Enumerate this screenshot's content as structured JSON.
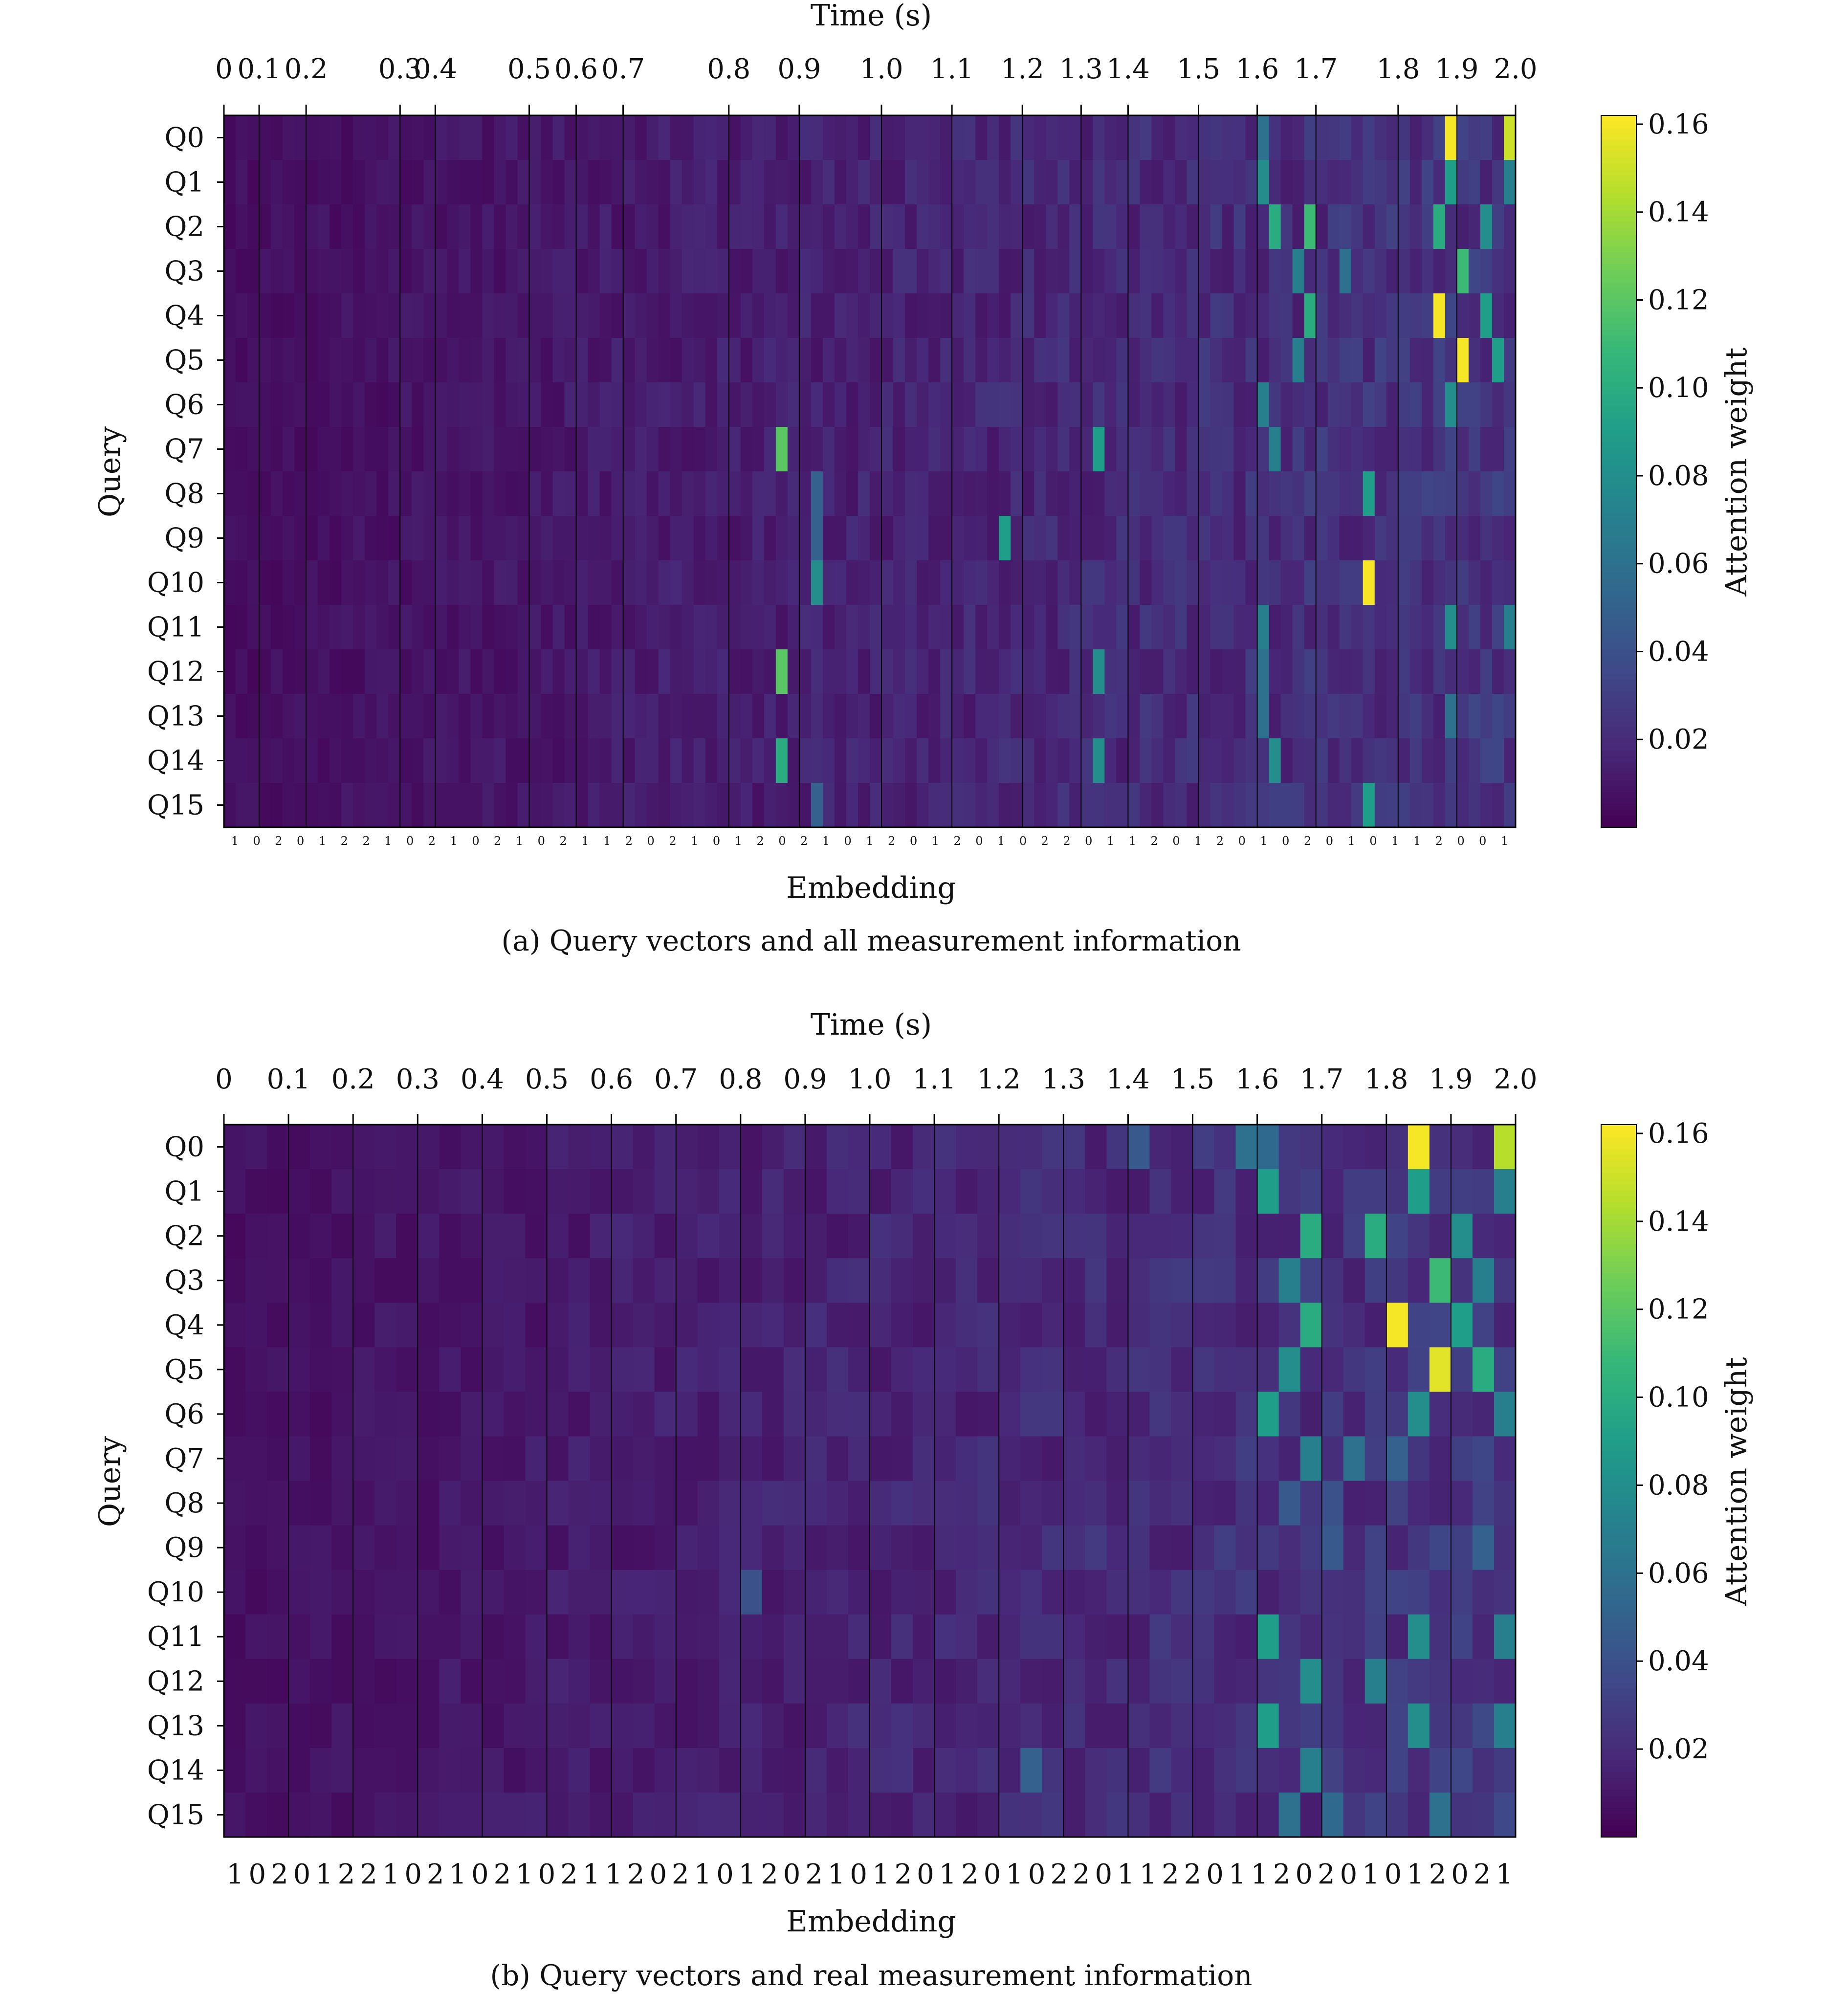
{
  "figure": {
    "charts": [
      "a",
      "b"
    ]
  },
  "panels": [
    {
      "id": "a",
      "caption": "(a) Query vectors and all measurement information",
      "xlabel_top": "Time (s)",
      "xlabel_bottom": "Embedding",
      "ylabel": "Query",
      "colorbar_label": "Attention weight"
    },
    {
      "id": "b",
      "caption": "(b) Query vectors and real measurement information",
      "xlabel_top": "Time (s)",
      "xlabel_bottom": "Embedding",
      "ylabel": "Query",
      "colorbar_label": "Attention weight"
    }
  ],
  "chart_data": [
    {
      "type": "heatmap",
      "panel": "a",
      "title": "",
      "colormap": "viridis",
      "rows": [
        "Q0",
        "Q1",
        "Q2",
        "Q3",
        "Q4",
        "Q5",
        "Q6",
        "Q7",
        "Q8",
        "Q9",
        "Q10",
        "Q11",
        "Q12",
        "Q13",
        "Q14",
        "Q15"
      ],
      "n_embeddings": 110,
      "time_ticks": [
        "0",
        "0.1",
        "0.2",
        "0.3",
        "0.4",
        "0.5",
        "0.6",
        "0.7",
        "0.8",
        "0.9",
        "1.0",
        "1.1",
        "1.2",
        "1.3",
        "1.4",
        "1.5",
        "1.6",
        "1.7",
        "1.8",
        "1.9",
        "2.0"
      ],
      "time_tick_embedding_index": [
        0,
        3,
        7,
        15,
        18,
        26,
        30,
        34,
        43,
        49,
        56,
        62,
        68,
        73,
        77,
        83,
        88,
        93,
        100,
        105,
        110
      ],
      "embedding_tick_labels": [
        "1",
        "0",
        "2",
        "0",
        "1",
        "2",
        "2",
        "1",
        "0",
        "2",
        "1",
        "0",
        "2",
        "1",
        "0",
        "2",
        "1",
        "1",
        "2",
        "0",
        "2",
        "1",
        "0",
        "1",
        "2",
        "0",
        "2",
        "1",
        "0",
        "1",
        "2",
        "0",
        "1",
        "2",
        "0",
        "1",
        "0",
        "2",
        "2",
        "0",
        "1",
        "1",
        "2",
        "0",
        "1",
        "2",
        "0",
        "1",
        "0",
        "2",
        "0",
        "1",
        "0",
        "1",
        "1",
        "2",
        "0",
        "0",
        "1"
      ],
      "colorbar": {
        "min": 0.0,
        "max": 0.162,
        "ticks": [
          "0.02",
          "0.04",
          "0.06",
          "0.08",
          "0.10",
          "0.12",
          "0.14",
          "0.16"
        ]
      },
      "base_value": 0.006,
      "highlights": [
        {
          "row": 0,
          "col": 104,
          "value": 0.16
        },
        {
          "row": 0,
          "col": 109,
          "value": 0.15
        },
        {
          "row": 0,
          "col": 88,
          "value": 0.06
        },
        {
          "row": 1,
          "col": 104,
          "value": 0.09
        },
        {
          "row": 1,
          "col": 88,
          "value": 0.08
        },
        {
          "row": 1,
          "col": 109,
          "value": 0.07
        },
        {
          "row": 2,
          "col": 89,
          "value": 0.1
        },
        {
          "row": 2,
          "col": 92,
          "value": 0.11
        },
        {
          "row": 2,
          "col": 103,
          "value": 0.1
        },
        {
          "row": 2,
          "col": 107,
          "value": 0.08
        },
        {
          "row": 3,
          "col": 105,
          "value": 0.11
        },
        {
          "row": 3,
          "col": 91,
          "value": 0.07
        },
        {
          "row": 3,
          "col": 95,
          "value": 0.06
        },
        {
          "row": 4,
          "col": 103,
          "value": 0.16
        },
        {
          "row": 4,
          "col": 107,
          "value": 0.09
        },
        {
          "row": 4,
          "col": 92,
          "value": 0.1
        },
        {
          "row": 5,
          "col": 105,
          "value": 0.16
        },
        {
          "row": 5,
          "col": 108,
          "value": 0.09
        },
        {
          "row": 5,
          "col": 91,
          "value": 0.07
        },
        {
          "row": 6,
          "col": 104,
          "value": 0.08
        },
        {
          "row": 6,
          "col": 88,
          "value": 0.07
        },
        {
          "row": 7,
          "col": 47,
          "value": 0.12
        },
        {
          "row": 7,
          "col": 74,
          "value": 0.09
        },
        {
          "row": 7,
          "col": 89,
          "value": 0.07
        },
        {
          "row": 8,
          "col": 50,
          "value": 0.05
        },
        {
          "row": 8,
          "col": 97,
          "value": 0.09
        },
        {
          "row": 9,
          "col": 66,
          "value": 0.09
        },
        {
          "row": 9,
          "col": 50,
          "value": 0.05
        },
        {
          "row": 10,
          "col": 97,
          "value": 0.16
        },
        {
          "row": 10,
          "col": 50,
          "value": 0.08
        },
        {
          "row": 11,
          "col": 104,
          "value": 0.08
        },
        {
          "row": 11,
          "col": 88,
          "value": 0.07
        },
        {
          "row": 11,
          "col": 109,
          "value": 0.07
        },
        {
          "row": 12,
          "col": 47,
          "value": 0.12
        },
        {
          "row": 12,
          "col": 74,
          "value": 0.08
        },
        {
          "row": 12,
          "col": 88,
          "value": 0.06
        },
        {
          "row": 13,
          "col": 88,
          "value": 0.06
        },
        {
          "row": 13,
          "col": 104,
          "value": 0.06
        },
        {
          "row": 14,
          "col": 47,
          "value": 0.1
        },
        {
          "row": 14,
          "col": 74,
          "value": 0.08
        },
        {
          "row": 14,
          "col": 89,
          "value": 0.08
        },
        {
          "row": 15,
          "col": 50,
          "value": 0.05
        },
        {
          "row": 15,
          "col": 97,
          "value": 0.09
        }
      ]
    },
    {
      "type": "heatmap",
      "panel": "b",
      "title": "",
      "colormap": "viridis",
      "rows": [
        "Q0",
        "Q1",
        "Q2",
        "Q3",
        "Q4",
        "Q5",
        "Q6",
        "Q7",
        "Q8",
        "Q9",
        "Q10",
        "Q11",
        "Q12",
        "Q13",
        "Q14",
        "Q15"
      ],
      "n_embeddings": 60,
      "time_ticks": [
        "0",
        "0.1",
        "0.2",
        "0.3",
        "0.4",
        "0.5",
        "0.6",
        "0.7",
        "0.8",
        "0.9",
        "1.0",
        "1.1",
        "1.2",
        "1.3",
        "1.4",
        "1.5",
        "1.6",
        "1.7",
        "1.8",
        "1.9",
        "2.0"
      ],
      "embedding_tick_labels": [
        "1",
        "0",
        "2",
        "0",
        "1",
        "2",
        "2",
        "1",
        "0",
        "2",
        "1",
        "0",
        "2",
        "1",
        "0",
        "2",
        "1",
        "1",
        "2",
        "0",
        "2",
        "1",
        "0",
        "1",
        "2",
        "0",
        "2",
        "1",
        "0",
        "1",
        "2",
        "0",
        "1",
        "2",
        "0",
        "1",
        "0",
        "2",
        "2",
        "0",
        "1",
        "1",
        "2",
        "2",
        "0",
        "1",
        "1",
        "2",
        "0",
        "2",
        "0",
        "1",
        "0",
        "1",
        "2",
        "0",
        "2",
        "1"
      ],
      "colorbar": {
        "min": 0.0,
        "max": 0.162,
        "ticks": [
          "0.02",
          "0.04",
          "0.06",
          "0.08",
          "0.10",
          "0.12",
          "0.14",
          "0.16"
        ]
      },
      "base_value": 0.008,
      "highlights": [
        {
          "row": 0,
          "col": 55,
          "value": 0.16
        },
        {
          "row": 0,
          "col": 59,
          "value": 0.145
        },
        {
          "row": 0,
          "col": 47,
          "value": 0.06
        },
        {
          "row": 0,
          "col": 48,
          "value": 0.055
        },
        {
          "row": 0,
          "col": 42,
          "value": 0.045
        },
        {
          "row": 1,
          "col": 48,
          "value": 0.09
        },
        {
          "row": 1,
          "col": 55,
          "value": 0.09
        },
        {
          "row": 1,
          "col": 59,
          "value": 0.07
        },
        {
          "row": 2,
          "col": 50,
          "value": 0.1
        },
        {
          "row": 2,
          "col": 53,
          "value": 0.1
        },
        {
          "row": 2,
          "col": 57,
          "value": 0.08
        },
        {
          "row": 3,
          "col": 56,
          "value": 0.11
        },
        {
          "row": 3,
          "col": 49,
          "value": 0.07
        },
        {
          "row": 3,
          "col": 58,
          "value": 0.07
        },
        {
          "row": 4,
          "col": 54,
          "value": 0.16
        },
        {
          "row": 4,
          "col": 50,
          "value": 0.1
        },
        {
          "row": 4,
          "col": 57,
          "value": 0.09
        },
        {
          "row": 5,
          "col": 56,
          "value": 0.155
        },
        {
          "row": 5,
          "col": 58,
          "value": 0.1
        },
        {
          "row": 5,
          "col": 49,
          "value": 0.08
        },
        {
          "row": 6,
          "col": 48,
          "value": 0.09
        },
        {
          "row": 6,
          "col": 55,
          "value": 0.08
        },
        {
          "row": 6,
          "col": 59,
          "value": 0.07
        },
        {
          "row": 7,
          "col": 50,
          "value": 0.07
        },
        {
          "row": 7,
          "col": 52,
          "value": 0.06
        },
        {
          "row": 7,
          "col": 54,
          "value": 0.05
        },
        {
          "row": 8,
          "col": 49,
          "value": 0.045
        },
        {
          "row": 8,
          "col": 51,
          "value": 0.04
        },
        {
          "row": 9,
          "col": 51,
          "value": 0.045
        },
        {
          "row": 9,
          "col": 58,
          "value": 0.05
        },
        {
          "row": 10,
          "col": 24,
          "value": 0.04
        },
        {
          "row": 11,
          "col": 48,
          "value": 0.09
        },
        {
          "row": 11,
          "col": 55,
          "value": 0.08
        },
        {
          "row": 11,
          "col": 59,
          "value": 0.07
        },
        {
          "row": 12,
          "col": 50,
          "value": 0.08
        },
        {
          "row": 12,
          "col": 53,
          "value": 0.07
        },
        {
          "row": 13,
          "col": 48,
          "value": 0.09
        },
        {
          "row": 13,
          "col": 55,
          "value": 0.08
        },
        {
          "row": 13,
          "col": 59,
          "value": 0.07
        },
        {
          "row": 14,
          "col": 50,
          "value": 0.07
        },
        {
          "row": 14,
          "col": 37,
          "value": 0.05
        },
        {
          "row": 15,
          "col": 49,
          "value": 0.06
        },
        {
          "row": 15,
          "col": 51,
          "value": 0.055
        },
        {
          "row": 15,
          "col": 56,
          "value": 0.06
        }
      ]
    }
  ]
}
